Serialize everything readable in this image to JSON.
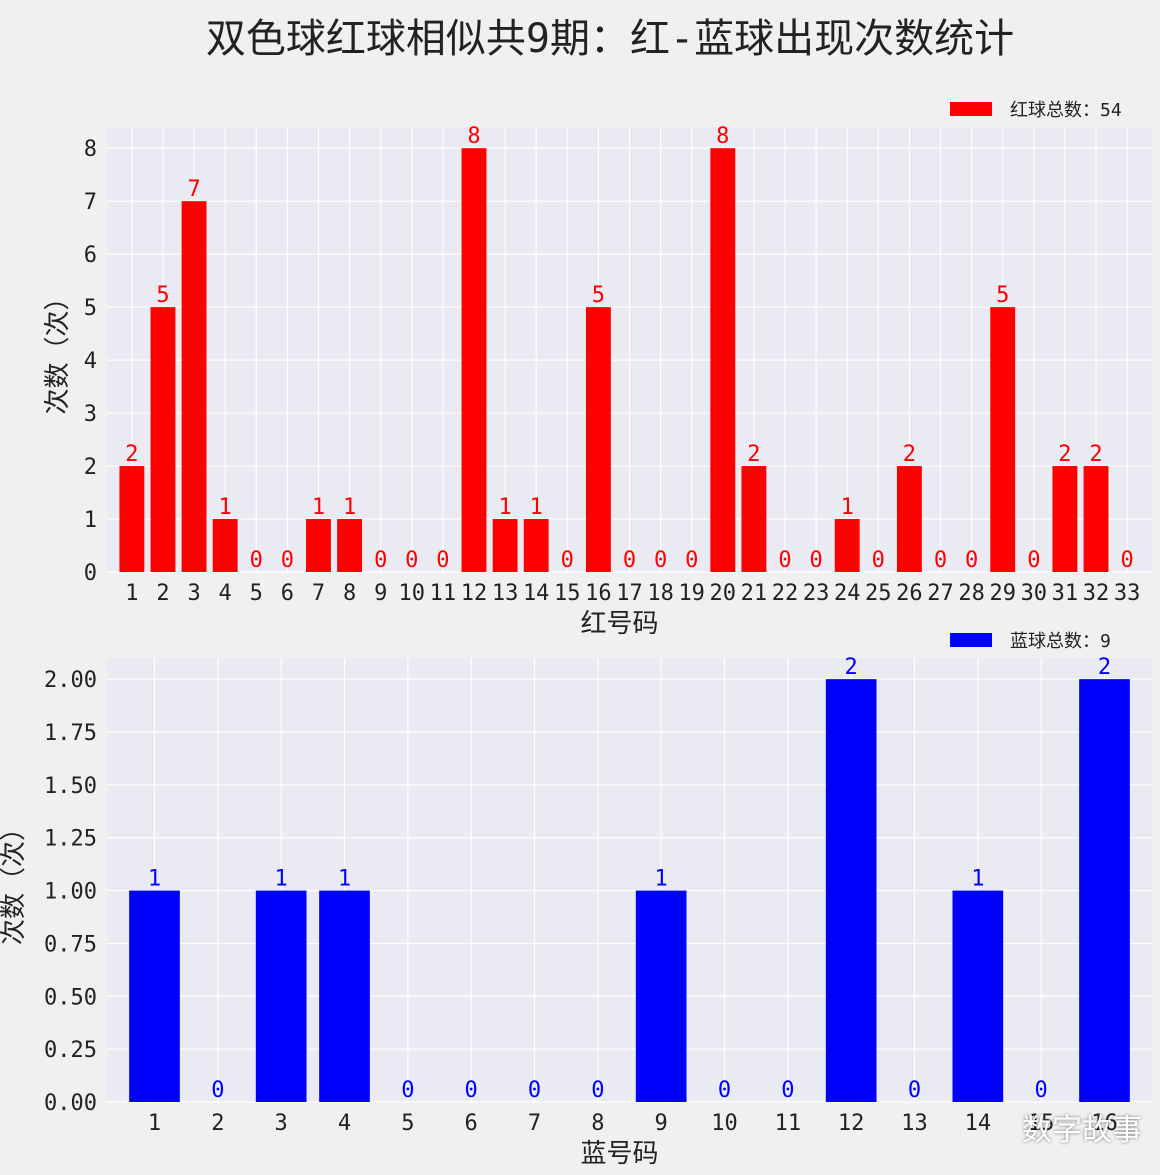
{
  "title": "双色球红球相似共9期：红-蓝球出现次数统计",
  "watermark": "数字故事",
  "colors": {
    "red": "#ff0000",
    "blue": "#0000ff",
    "panel": "#eaeaf2",
    "grid": "#ffffff"
  },
  "chart_data": [
    {
      "type": "bar",
      "xlabel": "红号码",
      "ylabel": "次数（次）",
      "legend": "红球总数：54",
      "legend_position": "top-right",
      "grid": true,
      "color": "#ff0000",
      "ylim": [
        0,
        8.4
      ],
      "yticks": [
        "0",
        "1",
        "2",
        "3",
        "4",
        "5",
        "6",
        "7",
        "8"
      ],
      "categories": [
        "1",
        "2",
        "3",
        "4",
        "5",
        "6",
        "7",
        "8",
        "9",
        "10",
        "11",
        "12",
        "13",
        "14",
        "15",
        "16",
        "17",
        "18",
        "19",
        "20",
        "21",
        "22",
        "23",
        "24",
        "25",
        "26",
        "27",
        "28",
        "29",
        "30",
        "31",
        "32",
        "33"
      ],
      "values": [
        2,
        5,
        7,
        1,
        0,
        0,
        1,
        1,
        0,
        0,
        0,
        8,
        1,
        1,
        0,
        5,
        0,
        0,
        0,
        8,
        2,
        0,
        0,
        1,
        0,
        2,
        0,
        0,
        5,
        0,
        2,
        2,
        0
      ]
    },
    {
      "type": "bar",
      "xlabel": "蓝号码",
      "ylabel": "次数（次）",
      "legend": "蓝球总数：9",
      "legend_position": "top-right",
      "grid": true,
      "color": "#0000ff",
      "ylim": [
        0,
        2.1
      ],
      "yticks": [
        "0.00",
        "0.25",
        "0.50",
        "0.75",
        "1.00",
        "1.25",
        "1.50",
        "1.75",
        "2.00"
      ],
      "categories": [
        "1",
        "2",
        "3",
        "4",
        "5",
        "6",
        "7",
        "8",
        "9",
        "10",
        "11",
        "12",
        "13",
        "14",
        "15",
        "16"
      ],
      "values": [
        1,
        0,
        1,
        1,
        0,
        0,
        0,
        0,
        1,
        0,
        0,
        2,
        0,
        1,
        0,
        2
      ]
    }
  ]
}
